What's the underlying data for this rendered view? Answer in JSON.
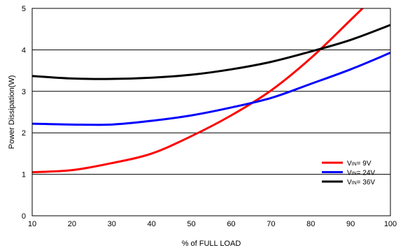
{
  "chart_data": {
    "type": "line",
    "title": "",
    "xlabel": "% of FULL LOAD",
    "ylabel": "Power Dissipation(W)",
    "xlim": [
      10,
      100
    ],
    "ylim": [
      0,
      5
    ],
    "xticks": [
      10,
      20,
      30,
      40,
      50,
      60,
      70,
      80,
      90,
      100
    ],
    "yticks": [
      0,
      1,
      2,
      3,
      4,
      5
    ],
    "grid": "horizontal",
    "legend_position": "bottom-right",
    "series": [
      {
        "name_prefix": "V",
        "name_sub": "IN",
        "name_suffix": "= 9V",
        "color": "#ff0000",
        "x": [
          10,
          20,
          30,
          40,
          50,
          60,
          70,
          80,
          90,
          93
        ],
        "y": [
          1.05,
          1.1,
          1.27,
          1.5,
          1.92,
          2.42,
          3.02,
          3.8,
          4.72,
          5.0
        ]
      },
      {
        "name_prefix": "V",
        "name_sub": "IN",
        "name_suffix": "= 24V",
        "color": "#0000ff",
        "x": [
          10,
          20,
          30,
          40,
          50,
          60,
          70,
          80,
          90,
          100
        ],
        "y": [
          2.22,
          2.2,
          2.2,
          2.29,
          2.42,
          2.61,
          2.84,
          3.18,
          3.53,
          3.93
        ]
      },
      {
        "name_prefix": "V",
        "name_sub": "IN",
        "name_suffix": "= 36V",
        "color": "#000000",
        "x": [
          10,
          20,
          30,
          40,
          50,
          60,
          70,
          80,
          90,
          100
        ],
        "y": [
          3.37,
          3.31,
          3.3,
          3.33,
          3.4,
          3.53,
          3.71,
          3.96,
          4.24,
          4.6
        ]
      }
    ]
  }
}
